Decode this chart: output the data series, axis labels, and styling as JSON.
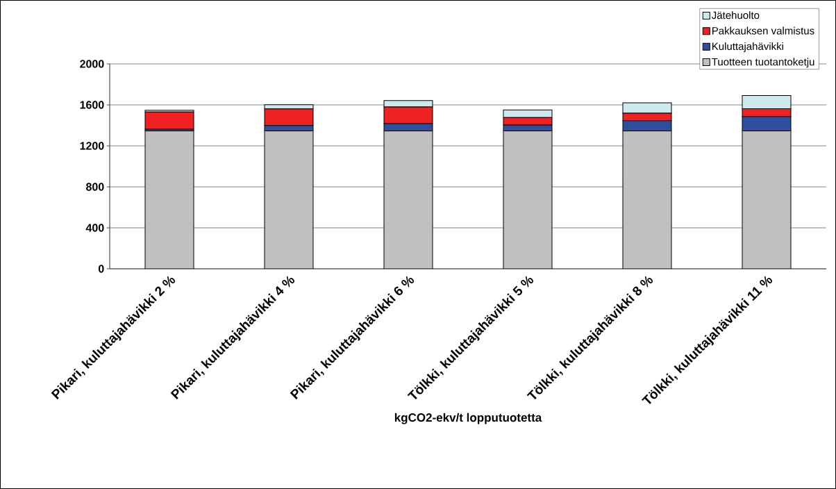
{
  "chart_data": {
    "type": "bar",
    "stacked": true,
    "xlabel": "kgCO2-ekv/t lopputuotetta",
    "categories": [
      "Pikari, kuluttajahävikki 2 %",
      "Pikari, kuluttajahävikki 4 %",
      "Pikari, kuluttajahävikki 6 %",
      "Tölkki, kuluttajahävikki 5 %",
      "Tölkki, kuluttajahävikki 8 %",
      "Tölkki, kuluttajahävikki 11 %"
    ],
    "series": [
      {
        "name": "Tuotteen tuotantoketju",
        "color": "#c0c0c0",
        "values": [
          1345,
          1345,
          1345,
          1345,
          1345,
          1345
        ]
      },
      {
        "name": "Kuluttajahävikki",
        "color": "#2e4f9f",
        "values": [
          18,
          54,
          72,
          58,
          100,
          141
        ]
      },
      {
        "name": "Pakkauksen valmistus",
        "color": "#ee2222",
        "values": [
          167,
          162,
          163,
          74,
          73,
          76
        ]
      },
      {
        "name": "Jätehuolto",
        "color": "#cde9ee",
        "values": [
          18,
          41,
          63,
          73,
          103,
          129
        ]
      }
    ],
    "ylim": [
      0,
      2000
    ],
    "yticks": [
      0,
      400,
      800,
      1200,
      1600,
      2000
    ],
    "grid": "y",
    "legend": "top right"
  }
}
